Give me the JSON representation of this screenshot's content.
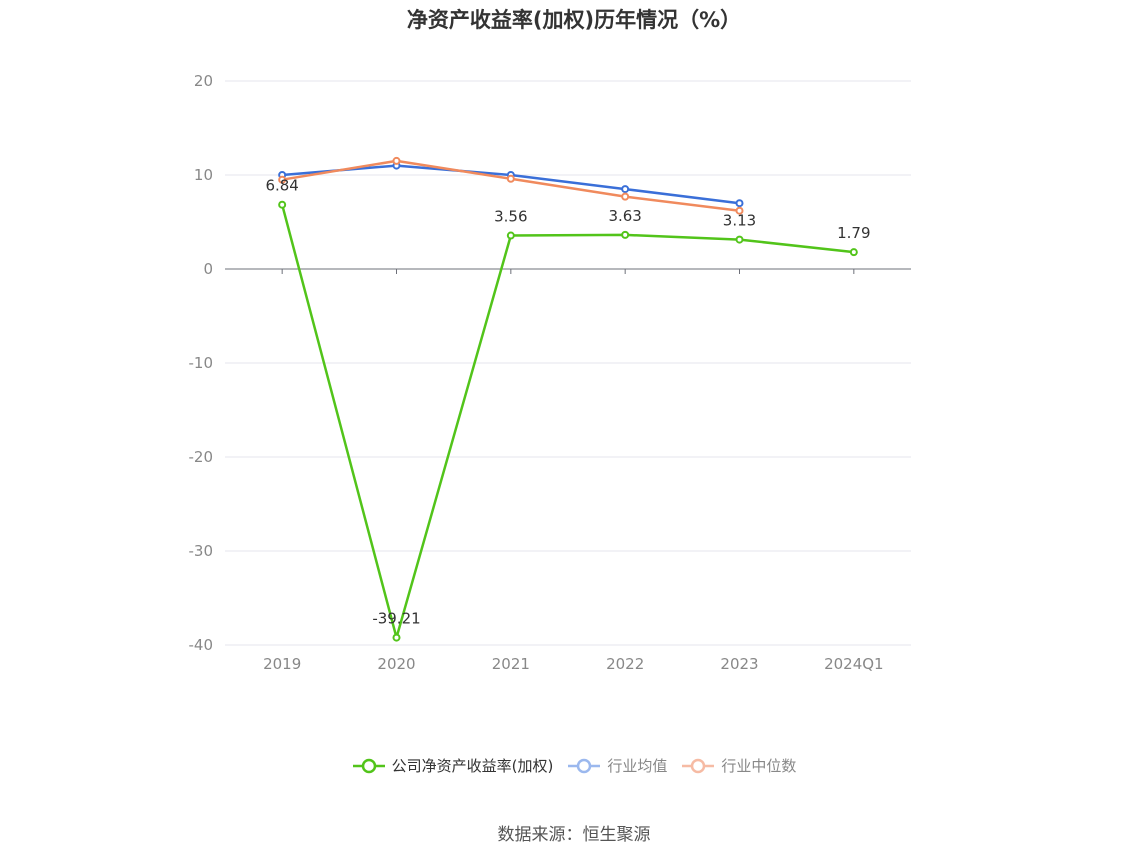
{
  "chart_data": {
    "type": "line",
    "title": "净资产收益率(加权)历年情况（%）",
    "categories": [
      "2019",
      "2020",
      "2021",
      "2022",
      "2023",
      "2024Q1"
    ],
    "ylim": [
      -40,
      20
    ],
    "yticks": [
      20,
      10,
      0,
      -10,
      -20,
      -30,
      -40
    ],
    "grid": true,
    "legend_position": "bottom",
    "series": [
      {
        "name": "公司净资产收益率(加权)",
        "color": "#52c41a",
        "values": [
          6.84,
          -39.21,
          3.56,
          3.63,
          3.13,
          1.79
        ],
        "labels": [
          "6.84",
          "-39.21",
          "3.56",
          "3.63",
          "3.13",
          "1.79"
        ]
      },
      {
        "name": "行业均值",
        "color": "#3a6fd8",
        "values": [
          10.0,
          11.0,
          10.0,
          8.5,
          7.0,
          null
        ]
      },
      {
        "name": "行业中位数",
        "color": "#f08a5d",
        "values": [
          9.5,
          11.5,
          9.6,
          7.7,
          6.2,
          null
        ]
      }
    ]
  },
  "legend": {
    "items": [
      {
        "label": "公司净资产收益率(加权)",
        "color": "#52c41a",
        "text_color": "#333333"
      },
      {
        "label": "行业均值",
        "color": "#9bb8ee",
        "text_color": "#888888"
      },
      {
        "label": "行业中位数",
        "color": "#f6bba4",
        "text_color": "#888888"
      }
    ]
  },
  "source": "数据来源：恒生聚源"
}
